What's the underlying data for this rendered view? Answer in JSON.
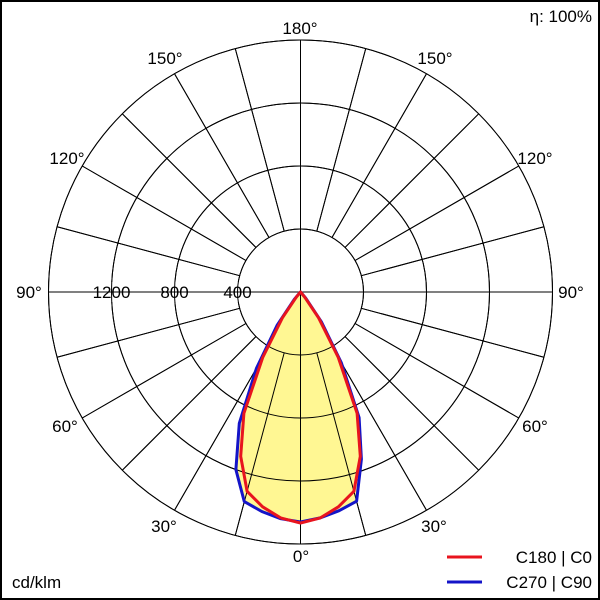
{
  "chart_data": {
    "type": "polar",
    "efficiency_label": "η: 100%",
    "unit_label": "cd/klm",
    "radial_ticks": [
      400,
      800,
      1200
    ],
    "radial_tick_labels": [
      "400",
      "800",
      "1200"
    ],
    "radial_max": 1600,
    "angle_labels": {
      "bottom": "0°",
      "top": "180°",
      "left": [
        "30°",
        "60°",
        "90°",
        "120°",
        "150°"
      ],
      "right": [
        "30°",
        "60°",
        "90°",
        "120°",
        "150°"
      ]
    },
    "grid": true,
    "fill_color": "#FFF793",
    "angles": [
      0,
      5,
      10,
      15,
      20,
      25,
      30,
      35,
      40,
      45,
      90
    ],
    "series": [
      {
        "name": "C180 | C0",
        "color": "#E8141E",
        "left_values": [
          1467,
          1440,
          1385,
          1310,
          1110,
          850,
          480,
          200,
          40,
          0,
          0
        ],
        "right_values": [
          1467,
          1440,
          1385,
          1310,
          1110,
          850,
          480,
          200,
          40,
          0,
          0
        ]
      },
      {
        "name": "C270 | C90",
        "color": "#1414C8",
        "left_values": [
          1460,
          1445,
          1415,
          1378,
          1200,
          920,
          560,
          260,
          60,
          0,
          0
        ],
        "right_values": [
          1460,
          1440,
          1410,
          1375,
          1130,
          880,
          520,
          230,
          50,
          0,
          0
        ]
      }
    ],
    "legend_position": "bottom-right"
  }
}
